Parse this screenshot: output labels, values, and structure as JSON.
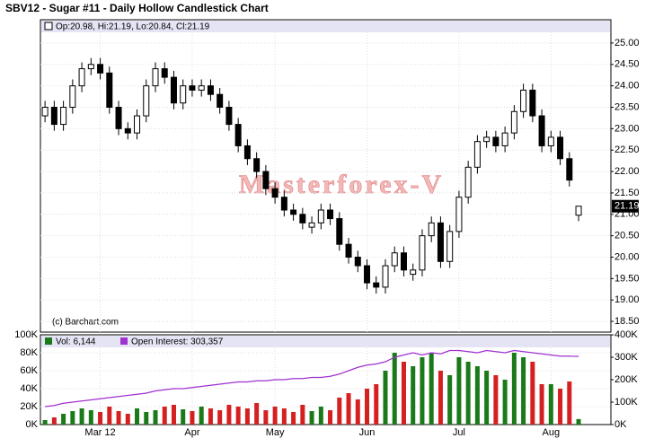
{
  "chart_data": {
    "type": "candlestick",
    "title": "SBV12 - Sugar #11 - Daily Hollow Candlestick Chart",
    "ohlc_header": "Op:20.98, Hi:21.19, Lo:20.84, Cl:21.19",
    "watermark": "Masterforex-V",
    "credit": "(c) Barchart.com",
    "categories": [
      null,
      null,
      null,
      null,
      null,
      null,
      "Mar 12",
      null,
      null,
      null,
      null,
      null,
      null,
      null,
      null,
      null,
      "Apr",
      null,
      null,
      null,
      null,
      null,
      null,
      null,
      null,
      "May",
      null,
      null,
      null,
      null,
      null,
      null,
      null,
      null,
      null,
      "Jun",
      null,
      null,
      null,
      null,
      null,
      null,
      null,
      null,
      null,
      "Jul",
      null,
      null,
      null,
      null,
      null,
      null,
      null,
      null,
      null,
      "Aug",
      null,
      null,
      null
    ],
    "open": [
      23.3,
      23.5,
      23.1,
      23.5,
      24.0,
      24.4,
      24.5,
      24.3,
      23.5,
      23.0,
      22.9,
      23.3,
      24.0,
      24.4,
      24.2,
      23.6,
      24.0,
      23.9,
      24.0,
      23.8,
      23.5,
      23.1,
      22.6,
      22.3,
      22.0,
      21.6,
      21.4,
      21.1,
      21.0,
      20.7,
      20.8,
      21.1,
      20.9,
      20.3,
      20.0,
      19.8,
      19.4,
      19.3,
      19.8,
      20.1,
      19.6,
      19.7,
      20.5,
      20.8,
      19.9,
      20.6,
      21.4,
      22.1,
      22.7,
      22.8,
      22.6,
      22.9,
      23.4,
      23.9,
      23.3,
      22.6,
      22.8,
      22.3,
      20.98
    ],
    "high": [
      23.65,
      23.65,
      23.65,
      24.15,
      24.55,
      24.65,
      24.65,
      24.45,
      23.65,
      23.15,
      23.45,
      24.15,
      24.55,
      24.55,
      24.35,
      24.15,
      24.15,
      24.15,
      24.15,
      23.95,
      23.65,
      23.25,
      22.75,
      22.45,
      22.15,
      21.75,
      21.55,
      21.25,
      21.15,
      20.95,
      21.25,
      21.25,
      21.05,
      20.45,
      20.15,
      19.95,
      19.55,
      19.95,
      20.25,
      20.25,
      19.85,
      20.65,
      20.95,
      20.95,
      20.75,
      21.55,
      22.25,
      22.85,
      22.95,
      22.95,
      23.05,
      23.55,
      24.05,
      24.05,
      23.45,
      22.95,
      22.95,
      22.45,
      21.19
    ],
    "low": [
      23.15,
      22.95,
      22.95,
      23.35,
      23.85,
      24.25,
      24.15,
      23.35,
      22.85,
      22.75,
      22.75,
      23.15,
      23.85,
      24.05,
      23.45,
      23.45,
      23.75,
      23.75,
      23.65,
      23.35,
      22.95,
      22.45,
      22.15,
      21.85,
      21.45,
      21.25,
      20.95,
      20.85,
      20.65,
      20.55,
      20.65,
      20.75,
      20.15,
      19.85,
      19.65,
      19.25,
      19.15,
      19.15,
      19.65,
      19.55,
      19.45,
      19.55,
      20.35,
      19.75,
      19.75,
      20.45,
      21.25,
      21.95,
      22.55,
      22.45,
      22.45,
      22.75,
      23.25,
      23.15,
      22.45,
      22.45,
      22.15,
      21.65,
      20.84
    ],
    "close": [
      23.5,
      23.1,
      23.5,
      24.0,
      24.4,
      24.5,
      24.3,
      23.5,
      23.0,
      22.9,
      23.3,
      24.0,
      24.4,
      24.2,
      23.6,
      24.0,
      23.9,
      24.0,
      23.8,
      23.5,
      23.1,
      22.6,
      22.3,
      22.0,
      21.6,
      21.4,
      21.1,
      21.0,
      20.8,
      20.8,
      21.1,
      20.9,
      20.3,
      20.0,
      19.8,
      19.4,
      19.3,
      19.8,
      20.1,
      19.7,
      19.7,
      20.5,
      20.8,
      19.9,
      20.6,
      21.4,
      22.1,
      22.7,
      22.8,
      22.6,
      22.9,
      23.4,
      23.9,
      23.3,
      22.6,
      22.8,
      22.3,
      21.8,
      21.19
    ],
    "ylim": [
      18.25,
      25.25
    ],
    "yticks": [
      {
        "value": 18.5,
        "label": "18.50"
      },
      {
        "value": 19,
        "label": "19.00"
      },
      {
        "value": 19.5,
        "label": "19.50"
      },
      {
        "value": 20,
        "label": "20.00"
      },
      {
        "value": 20.5,
        "label": "20.50"
      },
      {
        "value": 21,
        "label": "21.00"
      },
      {
        "value": 21.5,
        "label": "21.50"
      },
      {
        "value": 22,
        "label": "22.00"
      },
      {
        "value": 22.5,
        "label": "22.50"
      },
      {
        "value": 23,
        "label": "23.00"
      },
      {
        "value": 23.5,
        "label": "23.50"
      },
      {
        "value": 24,
        "label": "24.00"
      },
      {
        "value": 24.5,
        "label": "24.50"
      },
      {
        "value": 25,
        "label": "25.00"
      }
    ],
    "last_price_label": "21.19",
    "grid": true,
    "volume": {
      "legend": "Vol: 6,144",
      "color": "#1a7a1a",
      "up_color": "#1a7a1a",
      "down_color": "#d42020",
      "values": [
        5000,
        8000,
        12000,
        15000,
        18000,
        16000,
        14000,
        20000,
        15000,
        12000,
        18000,
        14000,
        16000,
        20000,
        22000,
        17000,
        15000,
        20000,
        18000,
        16000,
        22000,
        20000,
        18000,
        24000,
        16000,
        20000,
        18000,
        14000,
        22000,
        15000,
        20000,
        16000,
        30000,
        35000,
        28000,
        40000,
        45000,
        60000,
        80000,
        70000,
        65000,
        75000,
        80000,
        60000,
        55000,
        75000,
        70000,
        65000,
        60000,
        55000,
        50000,
        80000,
        75000,
        70000,
        45000,
        45000,
        40000,
        48000,
        6144
      ],
      "ylim": [
        0,
        100000
      ],
      "yticks": [
        {
          "value": 0,
          "label": "0K"
        },
        {
          "value": 20000,
          "label": "20K"
        },
        {
          "value": 40000,
          "label": "40K"
        },
        {
          "value": 60000,
          "label": "60K"
        },
        {
          "value": 80000,
          "label": "80K"
        },
        {
          "value": 100000,
          "label": "100K"
        }
      ]
    },
    "open_interest": {
      "legend": "Open Interest: 303,357",
      "color": "#a030d0",
      "axis": "y2",
      "values": [
        80000,
        85000,
        95000,
        100000,
        105000,
        110000,
        115000,
        120000,
        125000,
        130000,
        135000,
        140000,
        150000,
        155000,
        160000,
        160000,
        165000,
        170000,
        175000,
        180000,
        185000,
        190000,
        190000,
        195000,
        195000,
        200000,
        200000,
        205000,
        205000,
        210000,
        210000,
        215000,
        225000,
        240000,
        255000,
        265000,
        270000,
        280000,
        300000,
        310000,
        320000,
        310000,
        320000,
        315000,
        330000,
        330000,
        325000,
        320000,
        330000,
        325000,
        320000,
        330000,
        325000,
        320000,
        315000,
        310000,
        305000,
        305000,
        303357
      ],
      "y2lim": [
        0,
        400000
      ],
      "y2ticks": [
        {
          "value": 0,
          "label": "0K"
        },
        {
          "value": 100000,
          "label": "100K"
        },
        {
          "value": 200000,
          "label": "200K"
        },
        {
          "value": 300000,
          "label": "300K"
        },
        {
          "value": 400000,
          "label": "400K"
        }
      ]
    }
  }
}
